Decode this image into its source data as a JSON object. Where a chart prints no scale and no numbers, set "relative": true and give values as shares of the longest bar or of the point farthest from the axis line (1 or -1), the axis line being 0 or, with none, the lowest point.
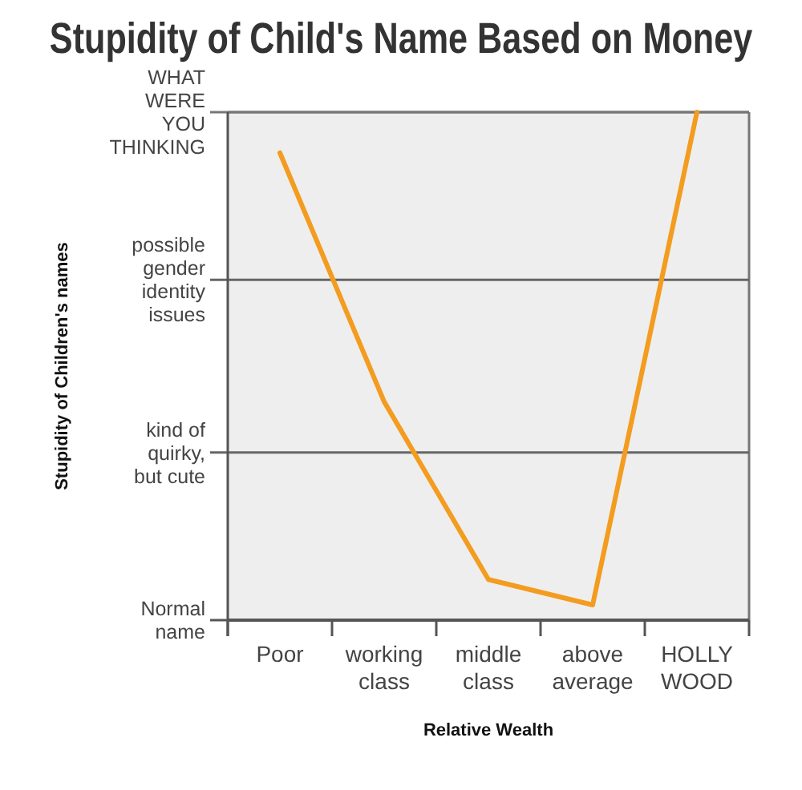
{
  "chart_data": {
    "type": "line",
    "title": "Stupidity of Child's Name Based on Money",
    "xlabel": "Relative Wealth",
    "annotations": [
      "Stupidity of Children's names"
    ],
    "categories": [
      "Poor",
      "working\nclass",
      "middle\nclass",
      "above\naverage",
      "HOLLY\nWOOD"
    ],
    "series": [
      {
        "color": "#f39c1f",
        "values": [
          0.92,
          0.43,
          0.08,
          0.03,
          1
        ]
      }
    ],
    "relative": true,
    "ref_lines": [
      {
        "axis": "y",
        "value": 0,
        "label": "Normal\nname",
        "color": "#555555"
      },
      {
        "axis": "y",
        "value": 0.33,
        "label": "kind of\nquirky,\nbut cute",
        "color": "#666666"
      },
      {
        "axis": "y",
        "value": 0.67,
        "label": "possible\ngender\nidentity\nissues",
        "color": "#666666"
      },
      {
        "axis": "y",
        "value": 1,
        "label": "WHAT\nWERE\nYOU\nTHINKING",
        "color": "#777777"
      }
    ]
  }
}
